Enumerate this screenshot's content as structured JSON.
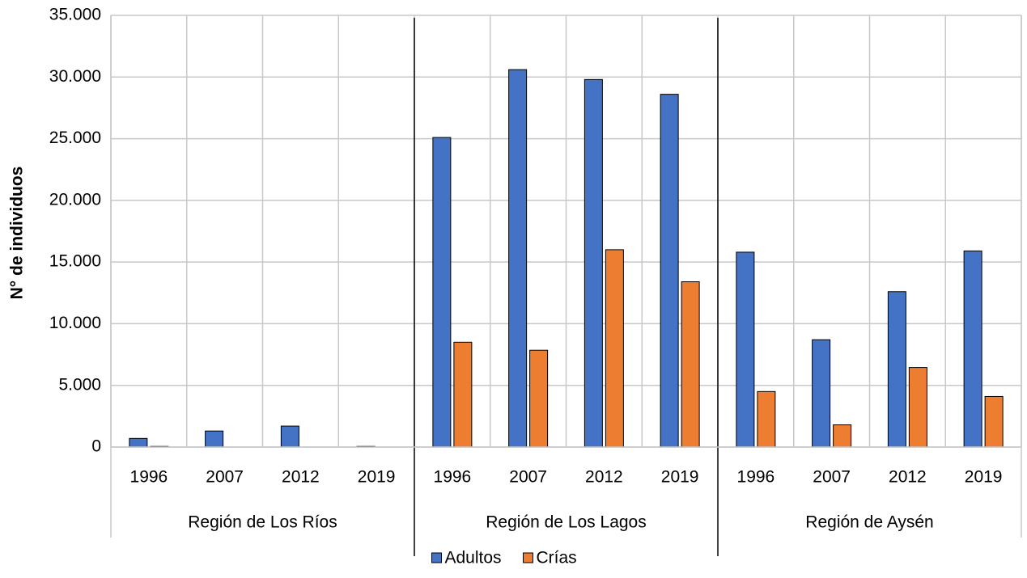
{
  "chart_data": {
    "type": "bar",
    "y_label": "N° de individuos",
    "groups": [
      {
        "label": "Región de Los Ríos",
        "categories": [
          "1996",
          "2007",
          "2012",
          "2019"
        ]
      },
      {
        "label": "Región de Los Lagos",
        "categories": [
          "1996",
          "2007",
          "2012",
          "2019"
        ]
      },
      {
        "label": "Región de Aysén",
        "categories": [
          "1996",
          "2007",
          "2012",
          "2019"
        ]
      }
    ],
    "series": [
      {
        "name": "Adultos",
        "color": "#4472c4",
        "values": [
          700,
          1300,
          1700,
          50,
          25100,
          30600,
          29800,
          28600,
          15800,
          8700,
          12600,
          15900
        ]
      },
      {
        "name": "Crías",
        "color": "#ed7d31",
        "values": [
          50,
          0,
          0,
          0,
          8500,
          7850,
          16000,
          13400,
          4500,
          1800,
          6450,
          4100
        ]
      }
    ],
    "ylim": [
      0,
      35000
    ],
    "yticks": [
      0,
      {
        "value": 5000,
        "label": "5.000"
      },
      {
        "value": 10000,
        "label": "10.000"
      },
      {
        "value": 15000,
        "label": "15.000"
      },
      {
        "value": 20000,
        "label": "20.000"
      },
      {
        "value": 25000,
        "label": "25.000"
      },
      {
        "value": 30000,
        "label": "30.000"
      },
      {
        "value": 35000,
        "label": "35.000"
      }
    ],
    "grid": true,
    "legend": "bottom"
  }
}
